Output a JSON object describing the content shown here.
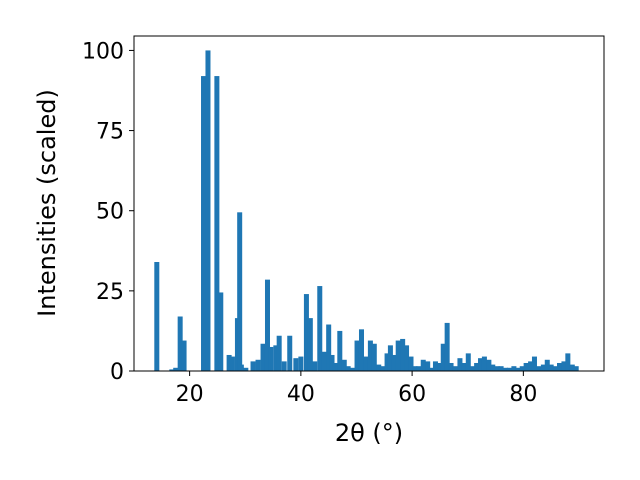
{
  "chart_data": {
    "type": "bar",
    "title": "",
    "xlabel": "2θ (°)",
    "ylabel": "Intensities (scaled)",
    "xlim": [
      10,
      94.5
    ],
    "ylim": [
      0,
      104.5
    ],
    "xticks": [
      20,
      40,
      60,
      80
    ],
    "yticks": [
      0,
      25,
      50,
      75,
      100
    ],
    "xtick_labels": [
      "20",
      "40",
      "60",
      "80"
    ],
    "ytick_labels": [
      "0",
      "25",
      "50",
      "75",
      "100"
    ],
    "bar_color": "#1f77b4",
    "bar_width": 0.9,
    "grid": false,
    "x": [
      14.1,
      16.8,
      17.5,
      18.3,
      19.0,
      22.5,
      23.3,
      24.9,
      25.6,
      27.1,
      27.7,
      28.6,
      29.0,
      29.3,
      30.1,
      31.4,
      32.3,
      33.2,
      34.0,
      34.6,
      35.5,
      36.1,
      37.0,
      38.0,
      39.1,
      40.0,
      41.0,
      41.7,
      42.5,
      43.4,
      44.2,
      45.0,
      45.6,
      46.2,
      47.0,
      47.8,
      48.5,
      49.3,
      50.1,
      50.9,
      51.7,
      52.5,
      53.2,
      54.0,
      54.8,
      55.5,
      56.1,
      56.8,
      57.5,
      58.3,
      59.0,
      59.8,
      60.5,
      61.2,
      62.0,
      62.8,
      63.5,
      64.2,
      65.0,
      65.6,
      66.3,
      67.0,
      67.8,
      68.6,
      69.3,
      70.1,
      70.8,
      71.6,
      72.3,
      73.0,
      73.8,
      74.5,
      75.3,
      76.0,
      76.8,
      77.5,
      78.3,
      79.0,
      79.8,
      80.5,
      81.3,
      82.0,
      82.8,
      83.6,
      84.3,
      85.0,
      85.8,
      86.5,
      87.3,
      88.0,
      88.8,
      89.5
    ],
    "values": [
      34.0,
      0.5,
      1.0,
      17.0,
      9.5,
      92.0,
      100.0,
      92.0,
      24.5,
      5.0,
      4.5,
      16.5,
      49.5,
      2.0,
      1.0,
      3.0,
      3.5,
      8.5,
      28.5,
      7.5,
      8.0,
      11.0,
      3.0,
      11.0,
      4.0,
      4.5,
      24.0,
      16.5,
      3.0,
      26.5,
      6.0,
      14.5,
      5.0,
      2.5,
      12.5,
      3.5,
      1.5,
      1.0,
      9.5,
      13.0,
      4.5,
      9.5,
      8.5,
      2.0,
      1.5,
      5.5,
      8.0,
      5.0,
      9.5,
      10.0,
      8.0,
      4.5,
      1.5,
      1.5,
      3.5,
      3.0,
      1.0,
      3.0,
      2.5,
      8.5,
      15.0,
      2.5,
      1.5,
      4.0,
      2.5,
      5.5,
      1.5,
      2.5,
      4.0,
      4.5,
      3.5,
      2.0,
      1.5,
      1.5,
      1.0,
      1.0,
      1.5,
      1.0,
      1.5,
      2.5,
      3.0,
      4.5,
      1.5,
      2.0,
      3.5,
      2.0,
      1.5,
      2.5,
      3.0,
      5.5,
      2.0,
      1.5
    ]
  }
}
